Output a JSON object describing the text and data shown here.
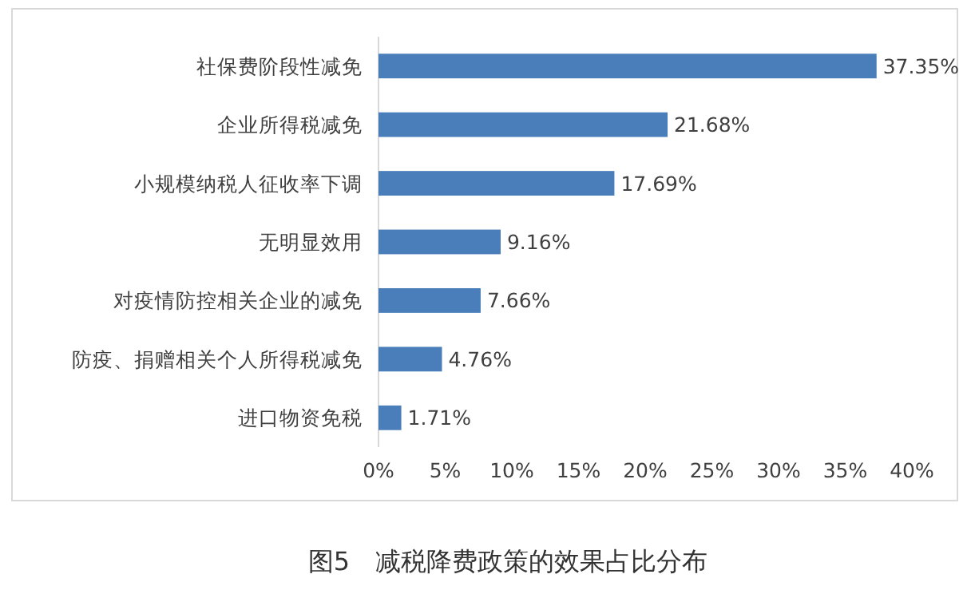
{
  "chart_data": {
    "type": "bar",
    "orientation": "horizontal",
    "categories": [
      "社保费阶段性减免",
      "企业所得税减免",
      "小规模纳税人征收率下调",
      "无明显效用",
      "对疫情防控相关企业的减免",
      "防疫、捐赠相关个人所得税减免",
      "进口物资免税"
    ],
    "values": [
      37.35,
      21.68,
      17.69,
      9.16,
      7.66,
      4.76,
      1.71
    ],
    "value_labels": [
      "37.35%",
      "21.68%",
      "17.69%",
      "9.16%",
      "7.66%",
      "4.76%",
      "1.71%"
    ],
    "color": "#4a7ebb",
    "xlim": [
      0,
      40
    ],
    "xticks": [
      {
        "value": 0,
        "label": "0%"
      },
      {
        "value": 5,
        "label": "5%"
      },
      {
        "value": 10,
        "label": "10%"
      },
      {
        "value": 15,
        "label": "15%"
      },
      {
        "value": 20,
        "label": "20%"
      },
      {
        "value": 25,
        "label": "25%"
      },
      {
        "value": 30,
        "label": "30%"
      },
      {
        "value": 35,
        "label": "35%"
      },
      {
        "value": 40,
        "label": "40%"
      }
    ],
    "grid": false,
    "annotations": [
      "图5　减税降费政策的效果占比分布"
    ]
  }
}
